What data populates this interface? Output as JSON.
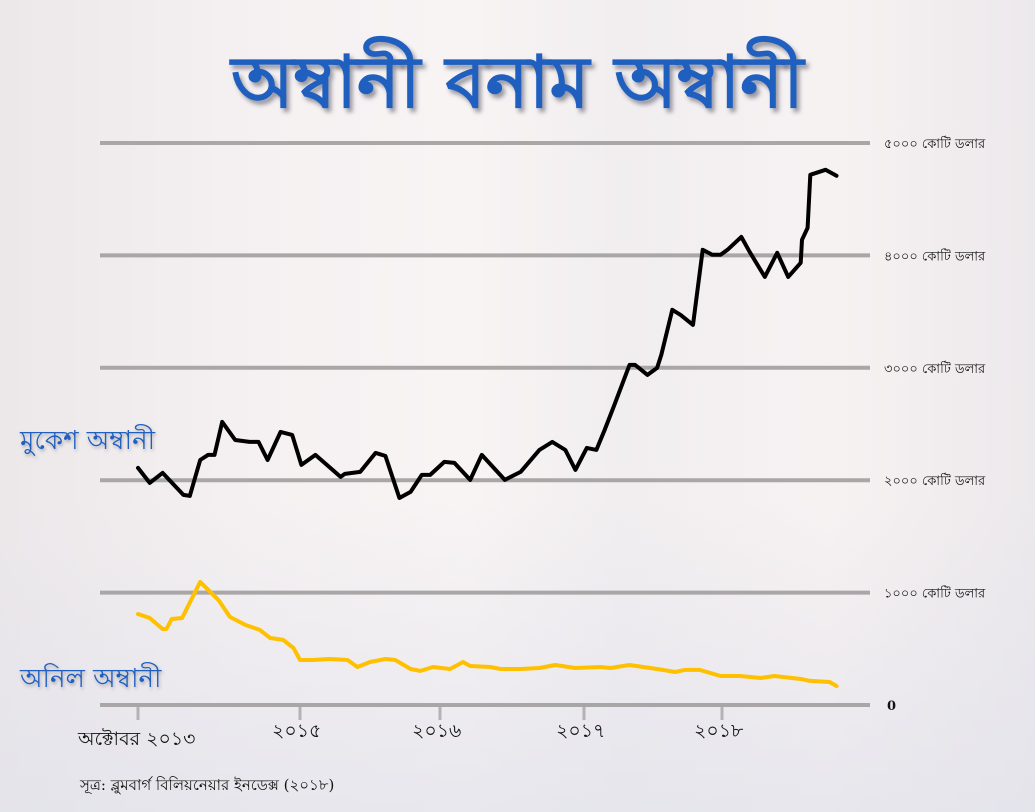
{
  "title": "অম্বানী বনাম অম্বানী",
  "source": "সূত্র: ব্লুমবার্গ বিলিয়নেয়ার ইনডেক্স (২০১৮)",
  "chart_data": {
    "type": "line",
    "title": "অম্বানী বনাম অম্বানী",
    "xlabel": "",
    "ylabel": "",
    "unit": "কোটি ডলার",
    "ylim": [
      0,
      5000
    ],
    "xlim": [
      2013.75,
      2018.85
    ],
    "grid": true,
    "y_ticks": [
      {
        "value": 0,
        "label": "0"
      },
      {
        "value": 1000,
        "label": "১০০০ কোটি ডলার"
      },
      {
        "value": 2000,
        "label": "২০০০ কোটি ডলার"
      },
      {
        "value": 3000,
        "label": "৩০০০ কোটি ডলার"
      },
      {
        "value": 4000,
        "label": "৪০০০ কোটি ডলার"
      },
      {
        "value": 5000,
        "label": "৫০০০ কোটি ডলার"
      }
    ],
    "x_ticks": [
      {
        "value": 2013.75,
        "label": "অক্টোবর ২০১৩"
      },
      {
        "value": 2015,
        "label": "২০১৫"
      },
      {
        "value": 2016,
        "label": "২০১৬"
      },
      {
        "value": 2017,
        "label": "২০১৭"
      },
      {
        "value": 2018,
        "label": "২০১৮"
      }
    ],
    "series": [
      {
        "name": "মুকেশ অম্বানী",
        "color": "#000000",
        "label_color": "#1f5fbf",
        "x": [
          2013.75,
          2013.84,
          2013.94,
          2014.1,
          2014.15,
          2014.23,
          2014.29,
          2014.34,
          2014.4,
          2014.5,
          2014.61,
          2014.68,
          2014.75,
          2014.85,
          2014.94,
          2015.01,
          2015.11,
          2015.29,
          2015.32,
          2015.43,
          2015.54,
          2015.61,
          2015.71,
          2015.79,
          2015.87,
          2015.93,
          2016.03,
          2016.1,
          2016.21,
          2016.29,
          2016.45,
          2016.56,
          2016.69,
          2016.78,
          2016.87,
          2016.94,
          2017.02,
          2017.09,
          2017.15,
          2017.22,
          2017.33,
          2017.37,
          2017.46,
          2017.53,
          2017.56,
          2017.64,
          2017.7,
          2017.79,
          2017.86,
          2017.93,
          2017.99,
          2018.04,
          2018.14,
          2018.2,
          2018.31,
          2018.4,
          2018.48,
          2018.57,
          2018.58,
          2018.62,
          2018.64,
          2018.75,
          2018.83
        ],
        "values": [
          2109,
          1976,
          2065,
          1869,
          1860,
          2180,
          2225,
          2225,
          2519,
          2358,
          2341,
          2341,
          2180,
          2430,
          2403,
          2136,
          2225,
          2029,
          2056,
          2074,
          2243,
          2216,
          1842,
          1896,
          2047,
          2047,
          2163,
          2154,
          2003,
          2225,
          2003,
          2074,
          2270,
          2341,
          2270,
          2092,
          2287,
          2270,
          2448,
          2670,
          3026,
          3026,
          2937,
          2999,
          3115,
          3516,
          3471,
          3382,
          4050,
          4005,
          4005,
          4050,
          4165,
          4032,
          3809,
          4023,
          3809,
          3934,
          4139,
          4245,
          4717,
          4762,
          4708
        ]
      },
      {
        "name": "অনিল অম্বানী",
        "color": "#ffc000",
        "label_color": "#1f5fbf",
        "x": [
          2013.75,
          2013.84,
          2013.94,
          2013.97,
          2014.01,
          2014.09,
          2014.23,
          2014.37,
          2014.46,
          2014.58,
          2014.69,
          2014.77,
          2014.87,
          2014.95,
          2015.0,
          2015.09,
          2015.21,
          2015.34,
          2015.41,
          2015.5,
          2015.61,
          2015.68,
          2015.79,
          2015.86,
          2015.95,
          2016.07,
          2016.16,
          2016.21,
          2016.35,
          2016.42,
          2016.56,
          2016.69,
          2016.8,
          2016.94,
          2017.12,
          2017.19,
          2017.33,
          2017.48,
          2017.57,
          2017.66,
          2017.73,
          2017.84,
          2017.99,
          2018.13,
          2018.28,
          2018.38,
          2018.57,
          2018.64,
          2018.78,
          2018.83
        ],
        "values": [
          810,
          774,
          676,
          676,
          765,
          774,
          1095,
          935,
          783,
          712,
          668,
          596,
          579,
          507,
          400,
          400,
          409,
          400,
          338,
          383,
          409,
          400,
          320,
          303,
          338,
          320,
          383,
          347,
          338,
          320,
          320,
          329,
          356,
          329,
          338,
          329,
          356,
          329,
          312,
          294,
          312,
          312,
          258,
          258,
          240,
          258,
          231,
          214,
          205,
          169
        ]
      }
    ]
  }
}
